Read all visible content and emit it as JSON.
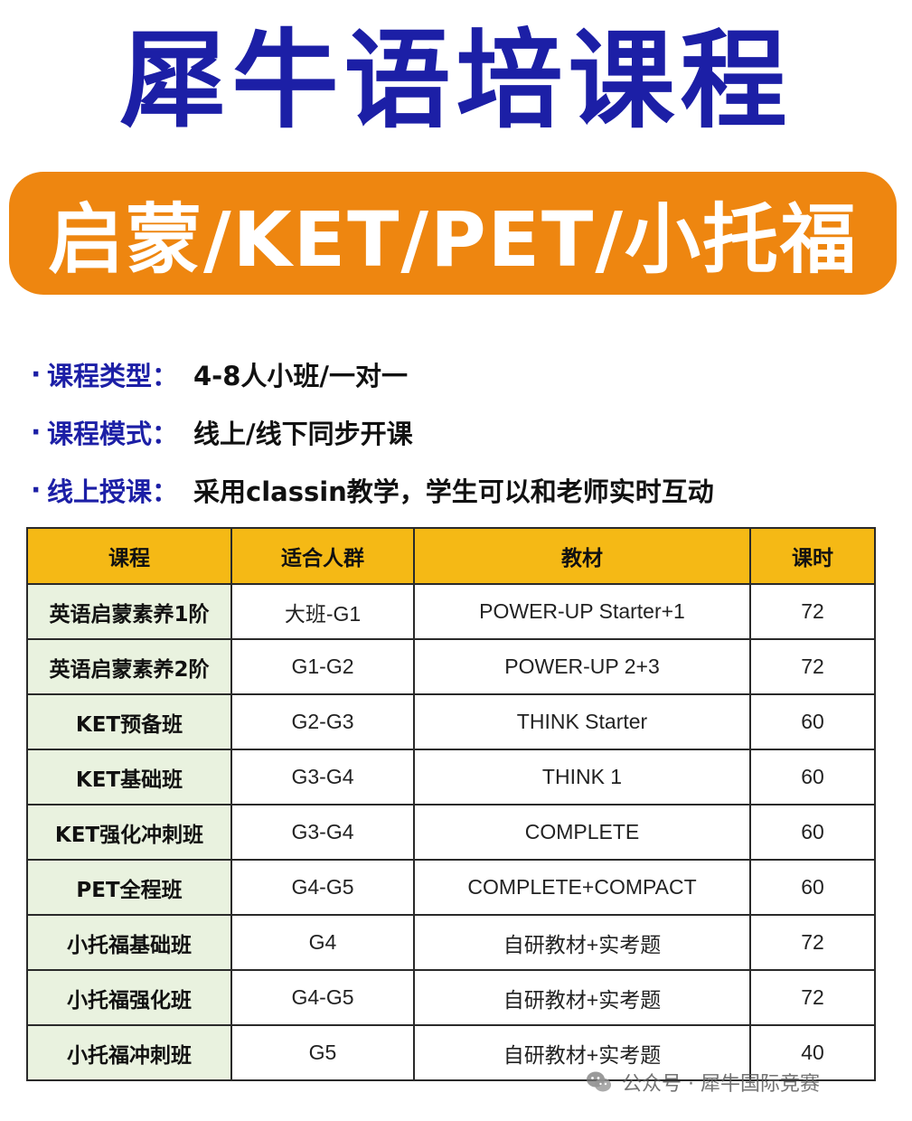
{
  "header": {
    "title": "犀牛语培课程",
    "banner": "启蒙/KET/PET/小托福"
  },
  "info": [
    {
      "bullet": "·",
      "label": "课程类型：",
      "value": "4-8人小班/一对一"
    },
    {
      "bullet": "·",
      "label": "课程模式：",
      "value": "线上/线下同步开课"
    },
    {
      "bullet": "·",
      "label": "线上授课：",
      "value": "采用classin教学，学生可以和老师实时互动"
    }
  ],
  "table": {
    "headers": [
      "课程",
      "适合人群",
      "教材",
      "课时"
    ],
    "rows": [
      [
        "英语启蒙素养1阶",
        "大班-G1",
        "POWER-UP Starter+1",
        "72"
      ],
      [
        "英语启蒙素养2阶",
        "G1-G2",
        "POWER-UP 2+3",
        "72"
      ],
      [
        "KET预备班",
        "G2-G3",
        "THINK Starter",
        "60"
      ],
      [
        "KET基础班",
        "G3-G4",
        "THINK 1",
        "60"
      ],
      [
        "KET强化冲刺班",
        "G3-G4",
        "COMPLETE",
        "60"
      ],
      [
        "PET全程班",
        "G4-G5",
        "COMPLETE+COMPACT",
        "60"
      ],
      [
        "小托福基础班",
        "G4",
        "自研教材+实考题",
        "72"
      ],
      [
        "小托福强化班",
        "G4-G5",
        "自研教材+实考题",
        "72"
      ],
      [
        "小托福冲刺班",
        "G5",
        "自研教材+实考题",
        "40"
      ]
    ]
  },
  "watermark": {
    "icon": "wechat-icon",
    "text": "公众号 · 犀牛国际竞赛"
  },
  "colors": {
    "title": "#1c1fa6",
    "banner": "#ee8610",
    "header_row": "#f5b915",
    "name_column": "#e9f2df"
  }
}
